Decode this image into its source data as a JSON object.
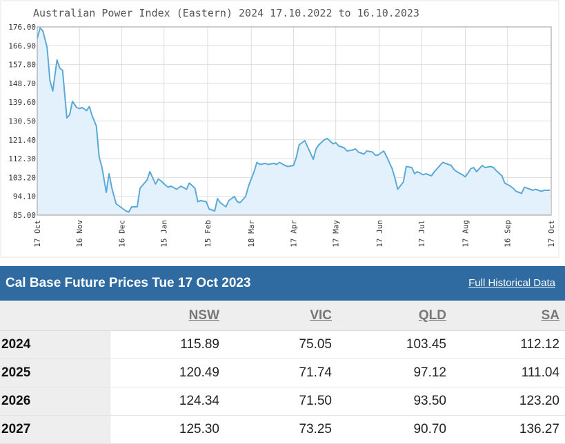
{
  "chart_data": {
    "type": "area",
    "title": "Australian Power Index (Eastern) 2024 17.10.2022 to 16.10.2023",
    "ylim": [
      85.0,
      176.0
    ],
    "yticks": [
      "176.00",
      "166.90",
      "157.80",
      "148.70",
      "139.60",
      "130.50",
      "121.40",
      "112.30",
      "103.20",
      "94.10",
      "85.00"
    ],
    "xticks": [
      {
        "label": "17 Oct",
        "x": "2022-10-17"
      },
      {
        "label": "16 Nov",
        "x": "2022-11-16"
      },
      {
        "label": "16 Dec",
        "x": "2022-12-16"
      },
      {
        "label": "15 Jan",
        "x": "2023-01-15"
      },
      {
        "label": "15 Feb",
        "x": "2023-02-15"
      },
      {
        "label": "18 Mar",
        "x": "2023-03-18"
      },
      {
        "label": "17 Apr",
        "x": "2023-04-17"
      },
      {
        "label": "17 May",
        "x": "2023-05-17"
      },
      {
        "label": "17 Jun",
        "x": "2023-06-17"
      },
      {
        "label": "17 Jul",
        "x": "2023-07-17"
      },
      {
        "label": "17 Aug",
        "x": "2023-08-17"
      },
      {
        "label": "16 Sep",
        "x": "2023-09-16"
      },
      {
        "label": "17 Oct",
        "x": "2023-10-17"
      }
    ],
    "grid": true,
    "line_color": "#5aa9d6",
    "fill_color": "#e3f1fc",
    "series": [
      {
        "x": [
          "2022-10-17",
          "2022-10-19",
          "2022-10-21",
          "2022-10-24",
          "2022-10-26",
          "2022-10-28",
          "2022-10-31",
          "2022-11-02",
          "2022-11-04",
          "2022-11-07",
          "2022-11-09",
          "2022-11-11",
          "2022-11-14",
          "2022-11-16",
          "2022-11-18",
          "2022-11-21",
          "2022-11-23",
          "2022-11-25",
          "2022-11-28",
          "2022-11-30",
          "2022-12-02",
          "2022-12-05",
          "2022-12-07",
          "2022-12-09",
          "2022-12-12",
          "2022-12-14",
          "2022-12-16",
          "2022-12-19",
          "2022-12-21",
          "2022-12-23",
          "2022-12-27",
          "2022-12-29",
          "2023-01-03",
          "2023-01-05",
          "2023-01-09",
          "2023-01-11",
          "2023-01-13",
          "2023-01-16",
          "2023-01-18",
          "2023-01-20",
          "2023-01-24",
          "2023-01-27",
          "2023-01-31",
          "2023-02-02",
          "2023-02-06",
          "2023-02-08",
          "2023-02-10",
          "2023-02-14",
          "2023-02-16",
          "2023-02-20",
          "2023-02-22",
          "2023-02-24",
          "2023-02-28",
          "2023-03-02",
          "2023-03-06",
          "2023-03-08",
          "2023-03-10",
          "2023-03-14",
          "2023-03-16",
          "2023-03-20",
          "2023-03-22",
          "2023-03-24",
          "2023-03-28",
          "2023-03-30",
          "2023-04-03",
          "2023-04-05",
          "2023-04-07",
          "2023-04-11",
          "2023-04-13",
          "2023-04-17",
          "2023-04-19",
          "2023-04-21",
          "2023-04-25",
          "2023-04-27",
          "2023-05-01",
          "2023-05-03",
          "2023-05-05",
          "2023-05-09",
          "2023-05-11",
          "2023-05-15",
          "2023-05-17",
          "2023-05-19",
          "2023-05-23",
          "2023-05-25",
          "2023-05-29",
          "2023-05-31",
          "2023-06-02",
          "2023-06-06",
          "2023-06-08",
          "2023-06-12",
          "2023-06-14",
          "2023-06-16",
          "2023-06-20",
          "2023-06-22",
          "2023-06-26",
          "2023-06-28",
          "2023-06-30",
          "2023-07-04",
          "2023-07-06",
          "2023-07-10",
          "2023-07-12",
          "2023-07-14",
          "2023-07-18",
          "2023-07-20",
          "2023-07-24",
          "2023-07-26",
          "2023-07-28",
          "2023-08-01",
          "2023-08-03",
          "2023-08-07",
          "2023-08-09",
          "2023-08-11",
          "2023-08-15",
          "2023-08-17",
          "2023-08-21",
          "2023-08-23",
          "2023-08-25",
          "2023-08-29",
          "2023-08-31",
          "2023-09-04",
          "2023-09-06",
          "2023-09-08",
          "2023-09-12",
          "2023-09-14",
          "2023-09-18",
          "2023-09-20",
          "2023-09-22",
          "2023-09-26",
          "2023-09-28",
          "2023-10-02",
          "2023-10-04",
          "2023-10-06",
          "2023-10-10",
          "2023-10-12",
          "2023-10-16"
        ],
        "values": [
          170.5,
          175.5,
          174.0,
          166.0,
          150.0,
          145.0,
          160.0,
          156.0,
          155.0,
          132.0,
          133.5,
          140.0,
          137.0,
          136.5,
          137.0,
          135.5,
          137.5,
          133.0,
          128.0,
          113.0,
          108.0,
          96.0,
          105.0,
          98.0,
          90.5,
          89.5,
          88.5,
          87.0,
          86.5,
          89.0,
          89.0,
          98.0,
          102.0,
          106.0,
          100.0,
          102.5,
          101.5,
          99.5,
          98.5,
          99.0,
          97.5,
          99.0,
          97.5,
          100.5,
          98.0,
          91.5,
          92.0,
          91.5,
          88.0,
          87.0,
          93.0,
          91.0,
          89.0,
          92.0,
          94.0,
          91.5,
          91.0,
          94.0,
          99.0,
          106.0,
          110.5,
          109.5,
          110.0,
          109.5,
          110.0,
          109.5,
          110.5,
          109.0,
          108.5,
          109.0,
          113.0,
          119.0,
          121.0,
          118.0,
          112.0,
          117.0,
          119.0,
          121.5,
          122.0,
          119.5,
          120.0,
          118.5,
          117.5,
          116.0,
          116.5,
          117.0,
          115.5,
          114.5,
          116.0,
          115.5,
          114.0,
          114.0,
          116.0,
          113.5,
          107.5,
          103.0,
          97.5,
          101.0,
          108.5,
          108.0,
          105.0,
          106.0,
          104.5,
          105.0,
          104.0,
          106.0,
          107.5,
          110.5,
          110.0,
          109.0,
          107.0,
          106.0,
          104.5,
          103.5,
          107.5,
          108.0,
          106.0,
          109.0,
          108.0,
          108.5,
          108.0,
          106.5,
          104.0,
          100.5,
          99.0,
          98.0,
          96.5,
          95.5,
          98.5,
          97.5,
          97.0,
          97.5,
          96.5,
          97.0,
          97.0
        ]
      }
    ]
  },
  "panel": {
    "title": "Cal Base Future Prices Tue 17 Oct 2023",
    "link": "Full Historical Data"
  },
  "table": {
    "headers": [
      "",
      "NSW",
      "VIC",
      "QLD",
      "SA"
    ],
    "rows": [
      [
        "2024",
        "115.89",
        "75.05",
        "103.45",
        "112.12"
      ],
      [
        "2025",
        "120.49",
        "71.74",
        "97.12",
        "111.04"
      ],
      [
        "2026",
        "124.34",
        "71.50",
        "93.50",
        "123.20"
      ],
      [
        "2027",
        "125.30",
        "73.25",
        "90.70",
        "136.27"
      ]
    ]
  }
}
